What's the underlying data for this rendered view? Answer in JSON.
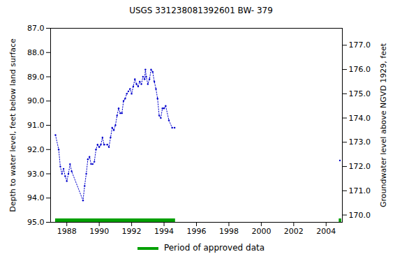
{
  "chart_data": {
    "type": "line",
    "title": "USGS 331238081392601 BW- 379",
    "ylabel": "Depth to water level, feet below land surface",
    "y2label": "Groundwater level above NGVD 1929, feet",
    "x": [
      1987.3,
      1987.5,
      1987.6,
      1987.7,
      1987.8,
      1987.9,
      1988.0,
      1988.1,
      1988.2,
      1988.3,
      1989.0,
      1989.1,
      1989.2,
      1989.3,
      1989.4,
      1989.5,
      1989.6,
      1989.7,
      1989.8,
      1989.9,
      1990.0,
      1990.1,
      1990.2,
      1990.3,
      1990.5,
      1990.6,
      1990.7,
      1990.8,
      1990.9,
      1991.0,
      1991.1,
      1991.2,
      1991.3,
      1991.4,
      1991.5,
      1991.6,
      1991.7,
      1991.8,
      1991.9,
      1992.0,
      1992.1,
      1992.2,
      1992.3,
      1992.4,
      1992.5,
      1992.6,
      1992.7,
      1992.8,
      1992.85,
      1992.9,
      1993.0,
      1993.1,
      1993.2,
      1993.3,
      1993.4,
      1993.5,
      1993.6,
      1993.7,
      1993.8,
      1993.9,
      1994.0,
      1994.1,
      1994.3,
      1994.5,
      1994.65,
      1999.0,
      2004.85
    ],
    "series": [
      {
        "name": "Depth to water level",
        "color": "#0000cc",
        "marker": "dot",
        "line_style": "dotted",
        "values": [
          91.4,
          92.0,
          92.7,
          93.0,
          92.8,
          93.1,
          93.3,
          93.0,
          92.6,
          92.9,
          94.1,
          93.5,
          93.0,
          92.4,
          92.3,
          92.6,
          92.6,
          92.5,
          92.0,
          91.8,
          91.9,
          91.8,
          91.5,
          91.8,
          91.8,
          91.9,
          91.5,
          91.1,
          91.2,
          91.0,
          90.6,
          90.3,
          90.5,
          90.5,
          90.0,
          89.9,
          89.7,
          89.6,
          89.5,
          89.7,
          89.4,
          89.1,
          89.3,
          89.4,
          89.2,
          89.3,
          89.0,
          89.1,
          88.7,
          89.0,
          89.3,
          89.1,
          88.7,
          88.8,
          89.2,
          89.5,
          89.9,
          90.6,
          90.7,
          90.3,
          90.3,
          90.2,
          90.8,
          91.1,
          91.1,
          null,
          92.45
        ]
      }
    ],
    "xlim": [
      1987,
      2005
    ],
    "xticks": [
      1988,
      1990,
      1992,
      1994,
      1996,
      1998,
      2000,
      2002,
      2004
    ],
    "ylim": [
      95,
      87
    ],
    "yticks": [
      {
        "value": 87,
        "label": "87.0"
      },
      {
        "value": 88,
        "label": "88.0"
      },
      {
        "value": 89,
        "label": "89.0"
      },
      {
        "value": 90,
        "label": "90.0"
      },
      {
        "value": 91,
        "label": "91.0"
      },
      {
        "value": 92,
        "label": "92.0"
      },
      {
        "value": 93,
        "label": "93.0"
      },
      {
        "value": 94,
        "label": "94.0"
      },
      {
        "value": 95,
        "label": "95.0"
      }
    ],
    "y2lim": [
      169.7,
      177.7
    ],
    "y2ticks": [
      {
        "value": 170,
        "label": "170.0"
      },
      {
        "value": 171,
        "label": "171.0"
      },
      {
        "value": 172,
        "label": "172.0"
      },
      {
        "value": 173,
        "label": "173.0"
      },
      {
        "value": 174,
        "label": "174.0"
      },
      {
        "value": 175,
        "label": "175.0"
      },
      {
        "value": 176,
        "label": "176.0"
      },
      {
        "value": 177,
        "label": "177.0"
      }
    ],
    "approved_periods": [
      [
        1987.3,
        1994.7
      ],
      [
        2004.8,
        2004.95
      ]
    ],
    "approved_label": "Period of approved data",
    "approved_color": "#00a000",
    "grid": false
  }
}
